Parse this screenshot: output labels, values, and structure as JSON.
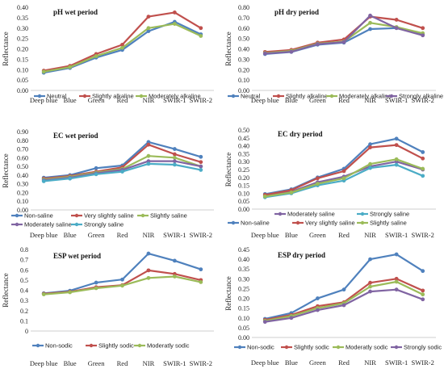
{
  "chart_data": [
    {
      "type": "line",
      "title": "pH wet period",
      "ylabel": "Reflectance",
      "categories": [
        "Deep blue",
        "Blue",
        "Green",
        "Red",
        "NIR",
        "SWIR-1",
        "SWIR-2"
      ],
      "ylim": [
        0,
        0.4
      ],
      "yticks": [
        "0.00",
        "0.05",
        "0.10",
        "0.15",
        "0.20",
        "0.25",
        "0.30",
        "0.35",
        "0.40"
      ],
      "series": [
        {
          "name": "Neutral",
          "color": "#4f81bd",
          "values": [
            0.085,
            0.108,
            0.158,
            0.195,
            0.285,
            0.33,
            0.27
          ]
        },
        {
          "name": "Slightly alkaline",
          "color": "#c0504d",
          "values": [
            0.095,
            0.118,
            0.175,
            0.22,
            0.355,
            0.375,
            0.3
          ]
        },
        {
          "name": "Moderately alkaline",
          "color": "#9bbb59",
          "values": [
            0.09,
            0.112,
            0.165,
            0.205,
            0.3,
            0.32,
            0.262
          ]
        }
      ]
    },
    {
      "type": "line",
      "title": "pH dry period",
      "ylabel": "Reflectance",
      "categories": [
        "Deep blue",
        "Blue",
        "Green",
        "Red",
        "NIR",
        "SWIR-1",
        "SWIR-2"
      ],
      "ylim": [
        0,
        0.8
      ],
      "yticks": [
        "0.00",
        "0.10",
        "0.20",
        "0.30",
        "0.40",
        "0.50",
        "0.60",
        "0.70",
        "0.80"
      ],
      "series": [
        {
          "name": "Neutral",
          "color": "#4f81bd",
          "values": [
            0.35,
            0.37,
            0.44,
            0.46,
            0.59,
            0.6,
            0.54
          ]
        },
        {
          "name": "Slightly alkaline",
          "color": "#c0504d",
          "values": [
            0.37,
            0.39,
            0.46,
            0.49,
            0.71,
            0.68,
            0.6
          ]
        },
        {
          "name": "Moderately alkaline",
          "color": "#9bbb59",
          "values": [
            0.36,
            0.38,
            0.45,
            0.47,
            0.65,
            0.61,
            0.55
          ]
        },
        {
          "name": "Strongly alkaline",
          "color": "#8064a2",
          "values": [
            0.355,
            0.372,
            0.445,
            0.465,
            0.72,
            0.6,
            0.53
          ]
        }
      ]
    },
    {
      "type": "line",
      "title": "EC wet period",
      "ylabel": "Reflectance",
      "categories": [
        "Deep blue",
        "Blue",
        "Green",
        "Red",
        "NIR",
        "SWIR-1",
        "SWIR-2"
      ],
      "ylim": [
        0,
        0.9
      ],
      "yticks": [
        "0.00",
        "0.10",
        "0.20",
        "0.30",
        "0.40",
        "0.50",
        "0.60",
        "0.70",
        "0.80",
        "0.90"
      ],
      "series": [
        {
          "name": "Non-saline",
          "color": "#4f81bd",
          "values": [
            0.37,
            0.4,
            0.48,
            0.51,
            0.78,
            0.7,
            0.61
          ]
        },
        {
          "name": "Very slightly saline",
          "color": "#c0504d",
          "values": [
            0.36,
            0.39,
            0.44,
            0.49,
            0.75,
            0.64,
            0.55
          ]
        },
        {
          "name": "Slightly saline",
          "color": "#9bbb59",
          "values": [
            0.35,
            0.38,
            0.43,
            0.47,
            0.62,
            0.6,
            0.5
          ]
        },
        {
          "name": "Moderately saline",
          "color": "#8064a2",
          "values": [
            0.34,
            0.37,
            0.42,
            0.46,
            0.56,
            0.56,
            0.5
          ]
        },
        {
          "name": "Strongly saline",
          "color": "#4bacc6",
          "values": [
            0.33,
            0.36,
            0.41,
            0.44,
            0.53,
            0.52,
            0.46
          ]
        }
      ]
    },
    {
      "type": "line",
      "title": "EC dry period",
      "ylabel": "Reflectance",
      "categories": [
        "Deep blue",
        "Blue",
        "Green",
        "Red",
        "NIR",
        "SWIR-1",
        "SWIR-2"
      ],
      "ylim": [
        0,
        0.5
      ],
      "yticks": [
        "0.00",
        "0.05",
        "0.10",
        "0.15",
        "0.20",
        "0.25",
        "0.30",
        "0.35",
        "0.40",
        "0.45",
        "0.50"
      ],
      "series": [
        {
          "name": "Non-saline",
          "color": "#4f81bd",
          "values": [
            0.095,
            0.125,
            0.2,
            0.255,
            0.41,
            0.445,
            0.36
          ]
        },
        {
          "name": "Moderately saline",
          "color": "#8064a2",
          "values": [
            0.085,
            0.11,
            0.17,
            0.205,
            0.27,
            0.3,
            0.25
          ]
        },
        {
          "name": "Very slightly saline",
          "color": "#c0504d",
          "values": [
            0.09,
            0.12,
            0.195,
            0.24,
            0.39,
            0.405,
            0.32
          ]
        },
        {
          "name": "Strongly saline",
          "color": "#4bacc6",
          "values": [
            0.075,
            0.1,
            0.15,
            0.18,
            0.26,
            0.28,
            0.21
          ]
        },
        {
          "name": "Slightly saline",
          "color": "#9bbb59",
          "values": [
            0.08,
            0.105,
            0.16,
            0.195,
            0.285,
            0.315,
            0.255
          ]
        }
      ]
    },
    {
      "type": "line",
      "title": "ESP wet period",
      "ylabel": "Reflectance",
      "categories": [
        "Deep blue",
        "Blue",
        "Green",
        "Red",
        "NIR",
        "SWIR-1",
        "SWIR-2"
      ],
      "ylim": [
        0,
        0.8
      ],
      "yticks": [
        "0",
        "0.1",
        "0.2",
        "0.3",
        "0.4",
        "0.5",
        "0.6",
        "0.7",
        "0.8"
      ],
      "series": [
        {
          "name": "Non-sodic",
          "color": "#4f81bd",
          "values": [
            0.37,
            0.395,
            0.475,
            0.505,
            0.76,
            0.69,
            0.605
          ]
        },
        {
          "name": "Slightly sodic",
          "color": "#c0504d",
          "values": [
            0.365,
            0.385,
            0.43,
            0.45,
            0.595,
            0.56,
            0.5
          ]
        },
        {
          "name": "Moderatly sodic",
          "color": "#9bbb59",
          "values": [
            0.36,
            0.38,
            0.42,
            0.445,
            0.52,
            0.535,
            0.48
          ]
        }
      ]
    },
    {
      "type": "line",
      "title": "ESP dry period",
      "ylabel": "Reflectance",
      "categories": [
        "Deep blue",
        "Blue",
        "Green",
        "Red",
        "NIR",
        "SWIR-1",
        "SWIR-2"
      ],
      "ylim": [
        0,
        0.45
      ],
      "yticks": [
        "0.00",
        "0.05",
        "0.10",
        "0.15",
        "0.20",
        "0.25",
        "0.30",
        "0.35",
        "0.40",
        "0.45"
      ],
      "series": [
        {
          "name": "Non-sodic",
          "color": "#4f81bd",
          "values": [
            0.095,
            0.125,
            0.2,
            0.245,
            0.4,
            0.425,
            0.34
          ]
        },
        {
          "name": "Slightly sodic",
          "color": "#c0504d",
          "values": [
            0.09,
            0.115,
            0.16,
            0.18,
            0.28,
            0.3,
            0.24
          ]
        },
        {
          "name": "Moderatly sodic",
          "color": "#9bbb59",
          "values": [
            0.085,
            0.11,
            0.15,
            0.175,
            0.26,
            0.285,
            0.22
          ]
        },
        {
          "name": "Strongly sodic",
          "color": "#8064a2",
          "values": [
            0.08,
            0.1,
            0.14,
            0.165,
            0.235,
            0.245,
            0.195
          ]
        }
      ]
    }
  ]
}
